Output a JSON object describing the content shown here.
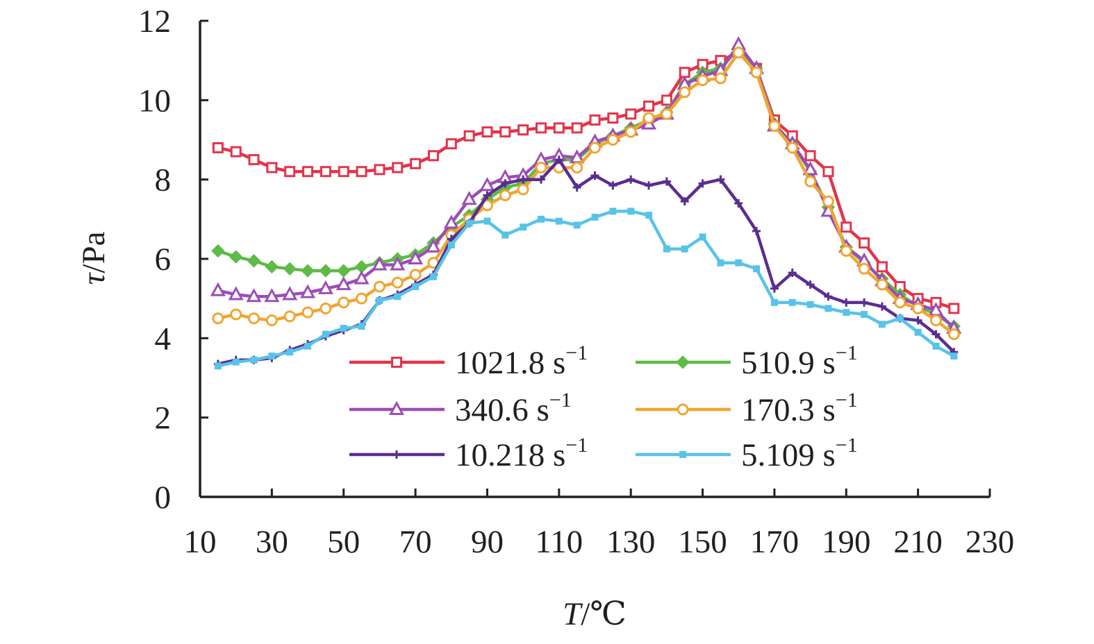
{
  "chart_data": {
    "type": "line",
    "title": "",
    "xlabel": "T/℃",
    "xlabel_italic": "T",
    "xlabel_rest": "/℃",
    "ylabel": "τ/Pa",
    "ylabel_italic": "τ",
    "ylabel_rest": "/Pa",
    "xlim": [
      10,
      230
    ],
    "ylim": [
      0,
      12
    ],
    "xticks": [
      10,
      30,
      50,
      70,
      90,
      110,
      130,
      150,
      170,
      190,
      210,
      230
    ],
    "yticks": [
      0,
      2,
      4,
      6,
      8,
      10,
      12
    ],
    "grid": false,
    "legend_position": "lower-center, two columns",
    "x": [
      15,
      20,
      25,
      30,
      35,
      40,
      45,
      50,
      55,
      60,
      65,
      70,
      75,
      80,
      85,
      90,
      95,
      100,
      105,
      110,
      115,
      120,
      125,
      130,
      135,
      140,
      145,
      150,
      155,
      160,
      165,
      170,
      175,
      180,
      185,
      190,
      195,
      200,
      205,
      210,
      215,
      220
    ],
    "series": [
      {
        "name": "1021.8 s",
        "superscript": "−1",
        "color": "#e2344b",
        "marker": "square-open",
        "values": [
          8.8,
          8.7,
          8.5,
          8.3,
          8.2,
          8.2,
          8.2,
          8.2,
          8.2,
          8.25,
          8.3,
          8.4,
          8.6,
          8.9,
          9.1,
          9.2,
          9.2,
          9.25,
          9.3,
          9.3,
          9.3,
          9.5,
          9.55,
          9.65,
          9.85,
          10.0,
          10.7,
          10.9,
          11.0,
          11.2,
          10.8,
          9.5,
          9.1,
          8.6,
          8.2,
          6.8,
          6.4,
          5.8,
          5.3,
          5.0,
          4.9,
          4.75
        ]
      },
      {
        "name": "510.9 s",
        "superscript": "−1",
        "color": "#5dbb46",
        "marker": "diamond-filled",
        "values": [
          6.2,
          6.05,
          5.95,
          5.8,
          5.75,
          5.7,
          5.7,
          5.7,
          5.8,
          5.9,
          6.0,
          6.1,
          6.4,
          6.8,
          7.1,
          7.5,
          7.8,
          7.9,
          8.4,
          8.5,
          8.5,
          8.9,
          9.1,
          9.3,
          9.5,
          9.7,
          10.4,
          10.7,
          10.8,
          11.3,
          10.8,
          9.4,
          8.9,
          8.2,
          7.3,
          6.3,
          5.9,
          5.5,
          5.1,
          4.8,
          4.6,
          4.3
        ]
      },
      {
        "name": "340.6 s",
        "superscript": "−1",
        "color": "#9c4db6",
        "marker": "triangle-open",
        "values": [
          5.2,
          5.1,
          5.05,
          5.05,
          5.1,
          5.15,
          5.25,
          5.35,
          5.5,
          5.85,
          5.85,
          6.0,
          6.3,
          6.9,
          7.5,
          7.85,
          8.05,
          8.1,
          8.5,
          8.6,
          8.55,
          8.95,
          9.1,
          9.25,
          9.4,
          9.65,
          10.4,
          10.6,
          10.75,
          11.4,
          10.8,
          9.35,
          8.9,
          8.25,
          7.2,
          6.3,
          5.95,
          5.45,
          5.0,
          4.85,
          4.7,
          4.25
        ]
      },
      {
        "name": "170.3 s",
        "superscript": "−1",
        "color": "#f0a531",
        "marker": "circle-open",
        "values": [
          4.5,
          4.6,
          4.5,
          4.45,
          4.55,
          4.65,
          4.75,
          4.9,
          5.0,
          5.3,
          5.4,
          5.6,
          5.9,
          6.6,
          7.0,
          7.35,
          7.6,
          7.75,
          8.3,
          8.3,
          8.3,
          8.8,
          9.0,
          9.2,
          9.55,
          9.65,
          10.2,
          10.5,
          10.55,
          11.2,
          10.7,
          9.35,
          8.8,
          7.95,
          7.45,
          6.2,
          5.75,
          5.35,
          4.9,
          4.75,
          4.45,
          4.1
        ]
      },
      {
        "name": "10.218 s",
        "superscript": "−1",
        "color": "#5b2d91",
        "marker": "plus",
        "values": [
          3.35,
          3.45,
          3.45,
          3.5,
          3.7,
          3.85,
          4.05,
          4.2,
          4.35,
          4.95,
          5.1,
          5.35,
          5.6,
          6.5,
          6.9,
          7.6,
          7.9,
          8.0,
          8.0,
          8.5,
          7.8,
          8.1,
          7.85,
          8.0,
          7.85,
          7.95,
          7.45,
          7.9,
          8.0,
          7.4,
          6.7,
          5.25,
          5.65,
          5.35,
          5.05,
          4.9,
          4.9,
          4.8,
          4.5,
          4.45,
          4.1,
          3.65
        ]
      },
      {
        "name": "5.109 s",
        "superscript": "−1",
        "color": "#58c3e8",
        "marker": "square-small-filled",
        "values": [
          3.3,
          3.4,
          3.45,
          3.55,
          3.65,
          3.8,
          4.1,
          4.25,
          4.3,
          4.95,
          5.05,
          5.3,
          5.55,
          6.35,
          6.9,
          6.95,
          6.6,
          6.8,
          7.0,
          6.95,
          6.85,
          7.05,
          7.2,
          7.2,
          7.1,
          6.25,
          6.25,
          6.55,
          5.9,
          5.9,
          5.75,
          4.9,
          4.9,
          4.85,
          4.75,
          4.65,
          4.6,
          4.35,
          4.5,
          4.15,
          3.8,
          3.55
        ]
      }
    ]
  }
}
